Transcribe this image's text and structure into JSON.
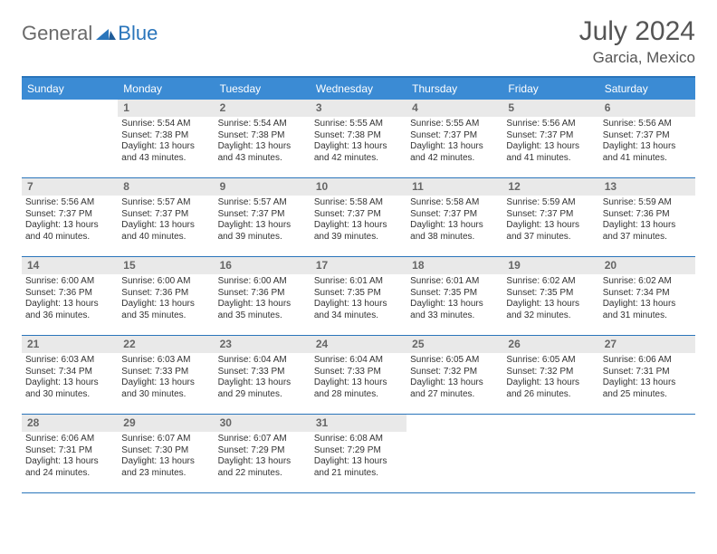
{
  "logo": {
    "text1": "General",
    "text2": "Blue"
  },
  "title": {
    "month": "July 2024",
    "location": "Garcia, Mexico"
  },
  "colors": {
    "header_bg": "#3b8bd4",
    "border": "#2a75bb",
    "daynum_bg": "#e9e9e9",
    "logo_gray": "#6a6a6a",
    "logo_blue": "#2a75bb"
  },
  "day_names": [
    "Sunday",
    "Monday",
    "Tuesday",
    "Wednesday",
    "Thursday",
    "Friday",
    "Saturday"
  ],
  "weeks": [
    [
      null,
      {
        "n": "1",
        "sr": "Sunrise: 5:54 AM",
        "ss": "Sunset: 7:38 PM",
        "dl1": "Daylight: 13 hours",
        "dl2": "and 43 minutes."
      },
      {
        "n": "2",
        "sr": "Sunrise: 5:54 AM",
        "ss": "Sunset: 7:38 PM",
        "dl1": "Daylight: 13 hours",
        "dl2": "and 43 minutes."
      },
      {
        "n": "3",
        "sr": "Sunrise: 5:55 AM",
        "ss": "Sunset: 7:38 PM",
        "dl1": "Daylight: 13 hours",
        "dl2": "and 42 minutes."
      },
      {
        "n": "4",
        "sr": "Sunrise: 5:55 AM",
        "ss": "Sunset: 7:37 PM",
        "dl1": "Daylight: 13 hours",
        "dl2": "and 42 minutes."
      },
      {
        "n": "5",
        "sr": "Sunrise: 5:56 AM",
        "ss": "Sunset: 7:37 PM",
        "dl1": "Daylight: 13 hours",
        "dl2": "and 41 minutes."
      },
      {
        "n": "6",
        "sr": "Sunrise: 5:56 AM",
        "ss": "Sunset: 7:37 PM",
        "dl1": "Daylight: 13 hours",
        "dl2": "and 41 minutes."
      }
    ],
    [
      {
        "n": "7",
        "sr": "Sunrise: 5:56 AM",
        "ss": "Sunset: 7:37 PM",
        "dl1": "Daylight: 13 hours",
        "dl2": "and 40 minutes."
      },
      {
        "n": "8",
        "sr": "Sunrise: 5:57 AM",
        "ss": "Sunset: 7:37 PM",
        "dl1": "Daylight: 13 hours",
        "dl2": "and 40 minutes."
      },
      {
        "n": "9",
        "sr": "Sunrise: 5:57 AM",
        "ss": "Sunset: 7:37 PM",
        "dl1": "Daylight: 13 hours",
        "dl2": "and 39 minutes."
      },
      {
        "n": "10",
        "sr": "Sunrise: 5:58 AM",
        "ss": "Sunset: 7:37 PM",
        "dl1": "Daylight: 13 hours",
        "dl2": "and 39 minutes."
      },
      {
        "n": "11",
        "sr": "Sunrise: 5:58 AM",
        "ss": "Sunset: 7:37 PM",
        "dl1": "Daylight: 13 hours",
        "dl2": "and 38 minutes."
      },
      {
        "n": "12",
        "sr": "Sunrise: 5:59 AM",
        "ss": "Sunset: 7:37 PM",
        "dl1": "Daylight: 13 hours",
        "dl2": "and 37 minutes."
      },
      {
        "n": "13",
        "sr": "Sunrise: 5:59 AM",
        "ss": "Sunset: 7:36 PM",
        "dl1": "Daylight: 13 hours",
        "dl2": "and 37 minutes."
      }
    ],
    [
      {
        "n": "14",
        "sr": "Sunrise: 6:00 AM",
        "ss": "Sunset: 7:36 PM",
        "dl1": "Daylight: 13 hours",
        "dl2": "and 36 minutes."
      },
      {
        "n": "15",
        "sr": "Sunrise: 6:00 AM",
        "ss": "Sunset: 7:36 PM",
        "dl1": "Daylight: 13 hours",
        "dl2": "and 35 minutes."
      },
      {
        "n": "16",
        "sr": "Sunrise: 6:00 AM",
        "ss": "Sunset: 7:36 PM",
        "dl1": "Daylight: 13 hours",
        "dl2": "and 35 minutes."
      },
      {
        "n": "17",
        "sr": "Sunrise: 6:01 AM",
        "ss": "Sunset: 7:35 PM",
        "dl1": "Daylight: 13 hours",
        "dl2": "and 34 minutes."
      },
      {
        "n": "18",
        "sr": "Sunrise: 6:01 AM",
        "ss": "Sunset: 7:35 PM",
        "dl1": "Daylight: 13 hours",
        "dl2": "and 33 minutes."
      },
      {
        "n": "19",
        "sr": "Sunrise: 6:02 AM",
        "ss": "Sunset: 7:35 PM",
        "dl1": "Daylight: 13 hours",
        "dl2": "and 32 minutes."
      },
      {
        "n": "20",
        "sr": "Sunrise: 6:02 AM",
        "ss": "Sunset: 7:34 PM",
        "dl1": "Daylight: 13 hours",
        "dl2": "and 31 minutes."
      }
    ],
    [
      {
        "n": "21",
        "sr": "Sunrise: 6:03 AM",
        "ss": "Sunset: 7:34 PM",
        "dl1": "Daylight: 13 hours",
        "dl2": "and 30 minutes."
      },
      {
        "n": "22",
        "sr": "Sunrise: 6:03 AM",
        "ss": "Sunset: 7:33 PM",
        "dl1": "Daylight: 13 hours",
        "dl2": "and 30 minutes."
      },
      {
        "n": "23",
        "sr": "Sunrise: 6:04 AM",
        "ss": "Sunset: 7:33 PM",
        "dl1": "Daylight: 13 hours",
        "dl2": "and 29 minutes."
      },
      {
        "n": "24",
        "sr": "Sunrise: 6:04 AM",
        "ss": "Sunset: 7:33 PM",
        "dl1": "Daylight: 13 hours",
        "dl2": "and 28 minutes."
      },
      {
        "n": "25",
        "sr": "Sunrise: 6:05 AM",
        "ss": "Sunset: 7:32 PM",
        "dl1": "Daylight: 13 hours",
        "dl2": "and 27 minutes."
      },
      {
        "n": "26",
        "sr": "Sunrise: 6:05 AM",
        "ss": "Sunset: 7:32 PM",
        "dl1": "Daylight: 13 hours",
        "dl2": "and 26 minutes."
      },
      {
        "n": "27",
        "sr": "Sunrise: 6:06 AM",
        "ss": "Sunset: 7:31 PM",
        "dl1": "Daylight: 13 hours",
        "dl2": "and 25 minutes."
      }
    ],
    [
      {
        "n": "28",
        "sr": "Sunrise: 6:06 AM",
        "ss": "Sunset: 7:31 PM",
        "dl1": "Daylight: 13 hours",
        "dl2": "and 24 minutes."
      },
      {
        "n": "29",
        "sr": "Sunrise: 6:07 AM",
        "ss": "Sunset: 7:30 PM",
        "dl1": "Daylight: 13 hours",
        "dl2": "and 23 minutes."
      },
      {
        "n": "30",
        "sr": "Sunrise: 6:07 AM",
        "ss": "Sunset: 7:29 PM",
        "dl1": "Daylight: 13 hours",
        "dl2": "and 22 minutes."
      },
      {
        "n": "31",
        "sr": "Sunrise: 6:08 AM",
        "ss": "Sunset: 7:29 PM",
        "dl1": "Daylight: 13 hours",
        "dl2": "and 21 minutes."
      },
      null,
      null,
      null
    ]
  ]
}
